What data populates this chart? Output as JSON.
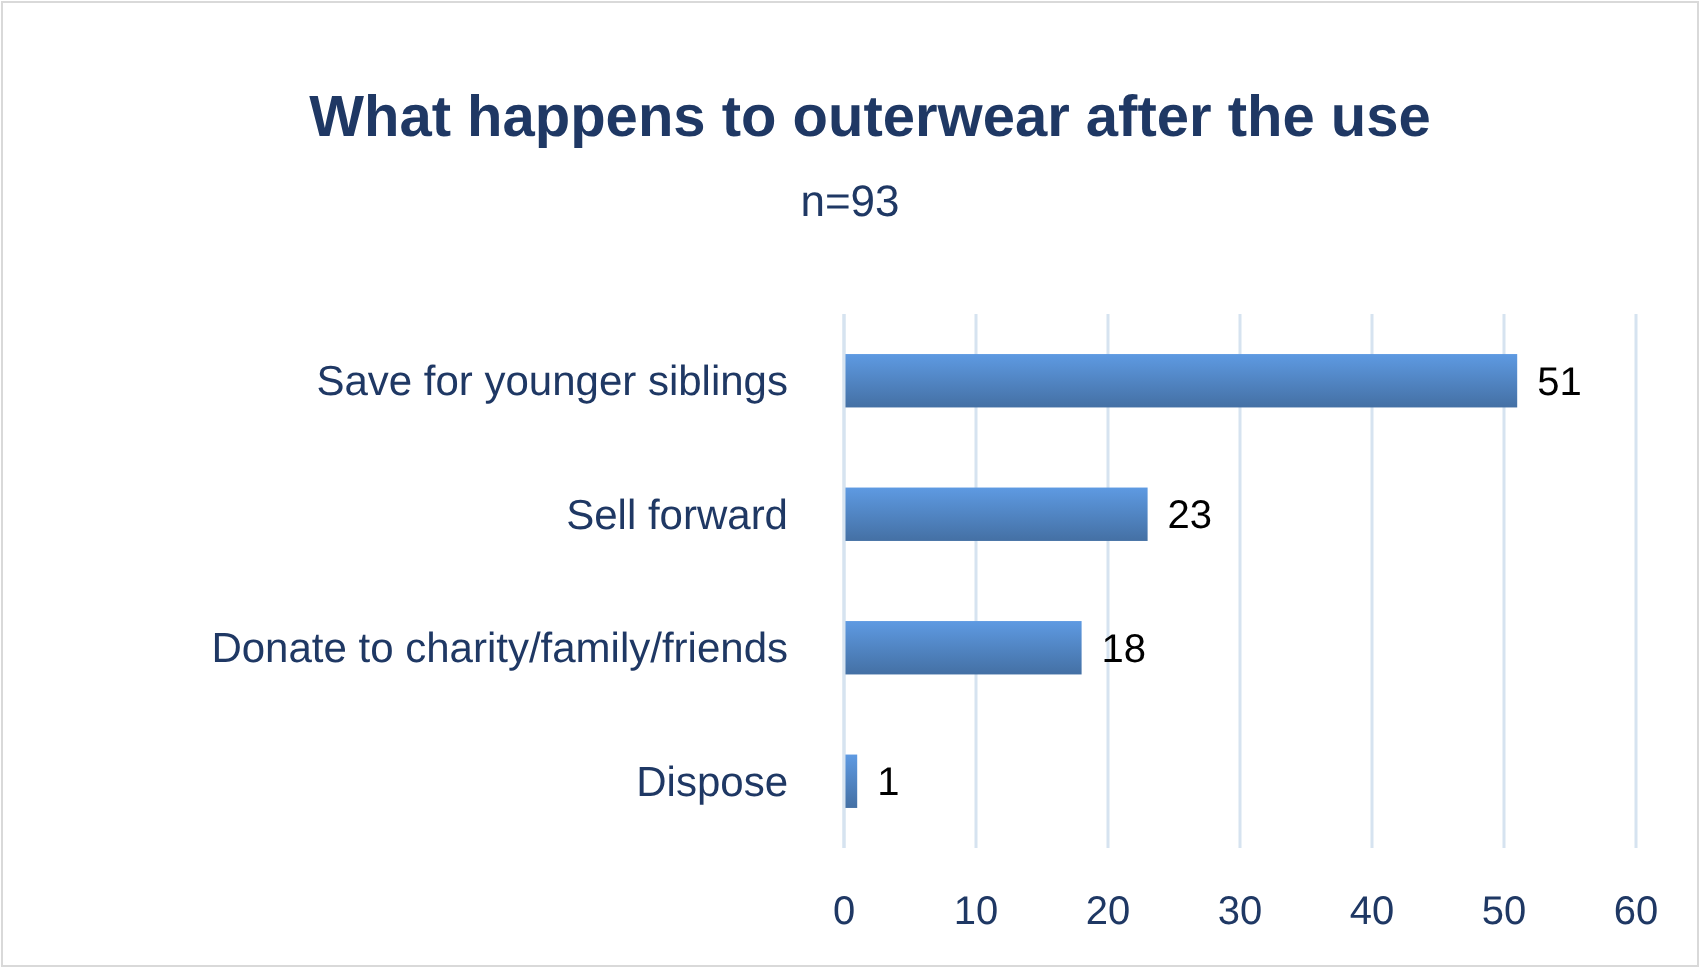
{
  "chart_data": {
    "type": "bar",
    "orientation": "horizontal",
    "title": "What happens to outerwear after the use",
    "subtitle": "n=93",
    "categories": [
      "Save for younger siblings",
      "Sell forward",
      "Donate to charity/family/friends",
      "Dispose"
    ],
    "values": [
      51,
      23,
      18,
      1
    ],
    "color": "#4f81bd",
    "xlim": [
      0,
      60
    ],
    "xticks": [
      0,
      10,
      20,
      30,
      40,
      50,
      60
    ],
    "grid": "x",
    "data_labels": true
  }
}
